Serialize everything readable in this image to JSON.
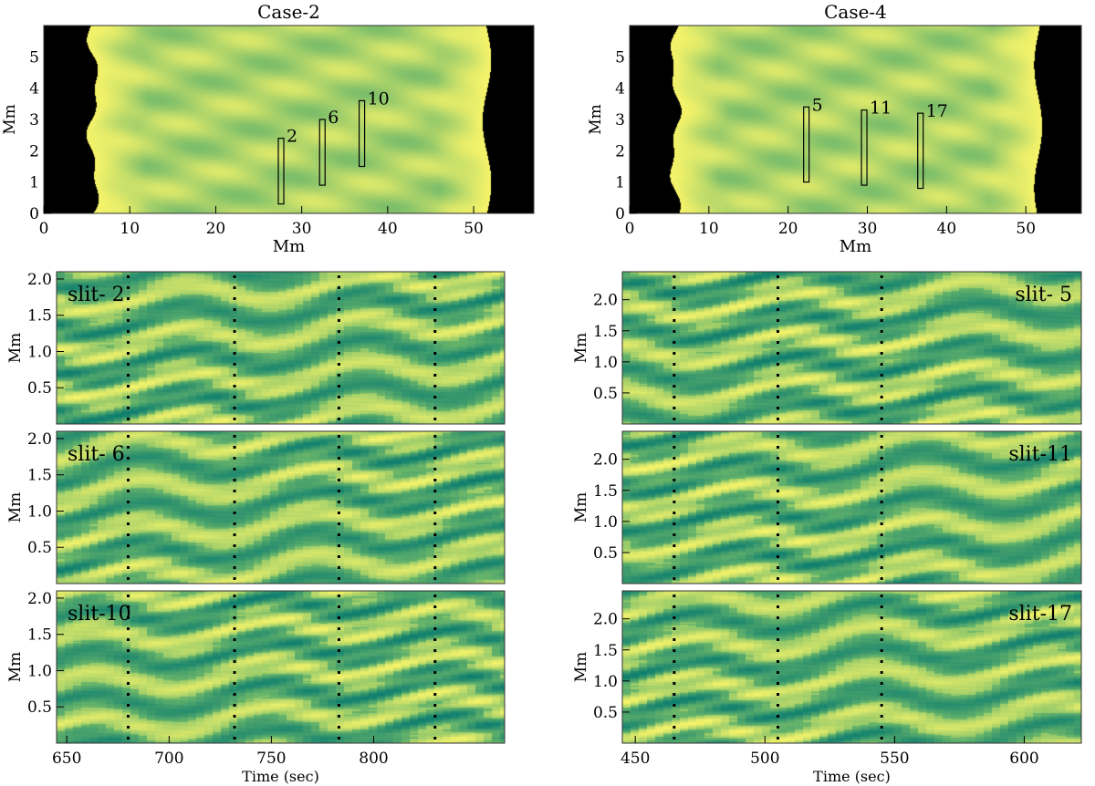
{
  "chart_data": [
    {
      "type": "heatmap",
      "id": "case2-map",
      "title": "Case-2",
      "xlabel": "Mm",
      "ylabel": "Mm",
      "xlim": [
        0,
        57
      ],
      "ylim": [
        0,
        6
      ],
      "xticks": [
        0,
        10,
        20,
        30,
        40,
        50
      ],
      "yticks": [
        0,
        1,
        2,
        3,
        4,
        5
      ],
      "slits": [
        {
          "label": "2",
          "x": 27.6,
          "y": [
            0.3,
            2.4
          ]
        },
        {
          "label": "6",
          "x": 32.4,
          "y": [
            0.9,
            3.0
          ]
        },
        {
          "label": "10",
          "x": 37.0,
          "y": [
            1.5,
            3.6
          ]
        }
      ]
    },
    {
      "type": "heatmap",
      "id": "case4-map",
      "title": "Case-4",
      "xlabel": "Mm",
      "ylabel": "Mm",
      "xlim": [
        0,
        57
      ],
      "ylim": [
        0,
        6
      ],
      "xticks": [
        0,
        10,
        20,
        30,
        40,
        50
      ],
      "yticks": [
        0,
        1,
        2,
        3,
        4,
        5
      ],
      "slits": [
        {
          "label": "5",
          "x": 22.3,
          "y": [
            1.0,
            3.4
          ]
        },
        {
          "label": "11",
          "x": 29.6,
          "y": [
            0.9,
            3.3
          ]
        },
        {
          "label": "17",
          "x": 36.7,
          "y": [
            0.8,
            3.2
          ]
        }
      ]
    },
    {
      "type": "heatmap",
      "id": "slit-2",
      "label": "slit- 2",
      "ylabel": "Mm",
      "xlim": [
        645,
        864
      ],
      "ylim": [
        0,
        2.1
      ],
      "yticks": [
        "0.5",
        "1.0",
        "1.5",
        "2.0"
      ],
      "xticks": [],
      "vlines": [
        680,
        732,
        783,
        830
      ]
    },
    {
      "type": "heatmap",
      "id": "slit-6",
      "label": "slit- 6",
      "ylabel": "Mm",
      "xlim": [
        645,
        864
      ],
      "ylim": [
        0,
        2.1
      ],
      "yticks": [
        "0.5",
        "1.0",
        "1.5",
        "2.0"
      ],
      "xticks": [],
      "vlines": [
        680,
        732,
        783,
        830
      ]
    },
    {
      "type": "heatmap",
      "id": "slit-10",
      "label": "slit-10",
      "ylabel": "Mm",
      "xlabel": "Time (sec)",
      "xlim": [
        645,
        864
      ],
      "ylim": [
        0,
        2.1
      ],
      "yticks": [
        "0.5",
        "1.0",
        "1.5",
        "2.0"
      ],
      "xticks": [
        650,
        700,
        750,
        800
      ],
      "vlines": [
        680,
        732,
        783,
        830
      ]
    },
    {
      "type": "heatmap",
      "id": "slit-5",
      "label": "slit- 5",
      "ylabel": "Mm",
      "xlim": [
        445,
        622
      ],
      "ylim": [
        0,
        2.45
      ],
      "yticks": [
        "0.5",
        "1.0",
        "1.5",
        "2.0"
      ],
      "xticks": [],
      "vlines": [
        465,
        505,
        545
      ]
    },
    {
      "type": "heatmap",
      "id": "slit-11",
      "label": "slit-11",
      "ylabel": "Mm",
      "xlim": [
        445,
        622
      ],
      "ylim": [
        0,
        2.45
      ],
      "yticks": [
        "0.5",
        "1.0",
        "1.5",
        "2.0"
      ],
      "xticks": [],
      "vlines": [
        465,
        505,
        545
      ]
    },
    {
      "type": "heatmap",
      "id": "slit-17",
      "label": "slit-17",
      "ylabel": "Mm",
      "xlabel": "Time (sec)",
      "xlim": [
        445,
        622
      ],
      "ylim": [
        0,
        2.45
      ],
      "yticks": [
        "0.5",
        "1.0",
        "1.5",
        "2.0"
      ],
      "xticks": [
        450,
        500,
        550,
        600
      ],
      "vlines": [
        465,
        505,
        545
      ]
    }
  ],
  "colors": {
    "yellow": "#f6f46a",
    "green": "#6db86a",
    "teal": "#1f8a70",
    "black": "#000000"
  }
}
